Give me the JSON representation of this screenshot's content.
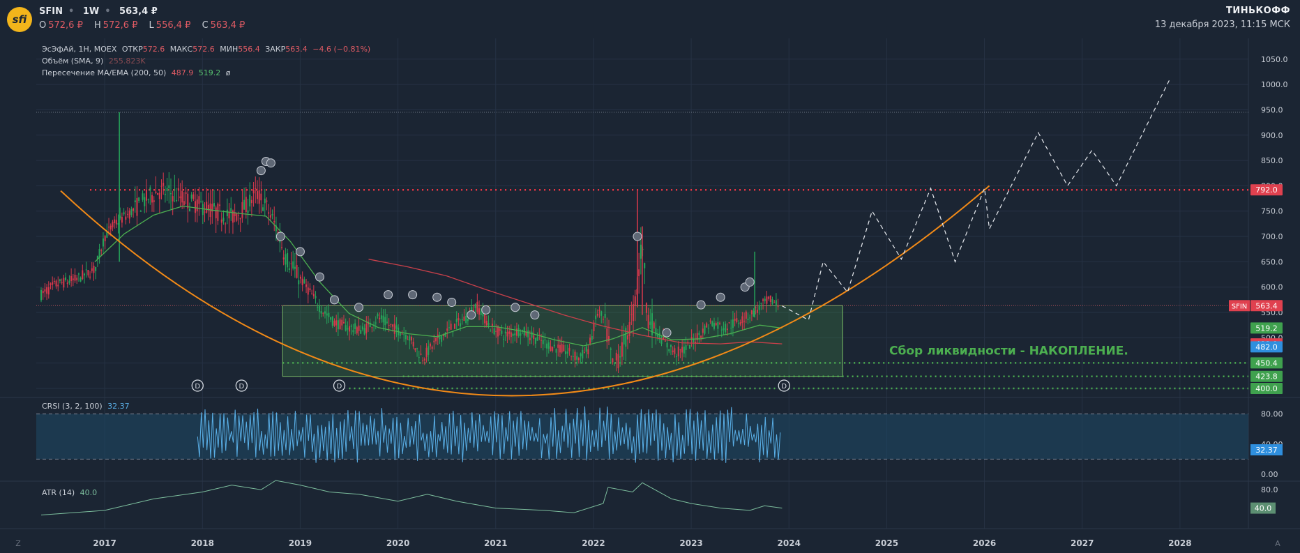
{
  "header": {
    "logo_text": "sfi",
    "symbol": "SFIN",
    "interval": "1W",
    "price": "563,4 ₽",
    "ohlc": [
      {
        "k": "O",
        "v": "572,6 ₽"
      },
      {
        "k": "H",
        "v": "572,6 ₽"
      },
      {
        "k": "L",
        "v": "556,4 ₽"
      },
      {
        "k": "C",
        "v": "563,4 ₽"
      }
    ],
    "brand": "ТИНЬКОФФ",
    "date": "13 декабря 2023, 11:15 МСК"
  },
  "legend": {
    "main_name": "ЭсЭфАй, 1Н, MOEX",
    "open_k": "ОТКР",
    "open_v": "572.6",
    "high_k": "МАКС",
    "high_v": "572.6",
    "low_k": "МИН",
    "low_v": "556.4",
    "close_k": "ЗАКР",
    "close_v": "563.4",
    "change": "−4.6 (−0.81%)",
    "volume_name": "Объём (SMA, 9)",
    "volume_v": "255.823K",
    "ma_name": "Пересечение MA/EMA (200, 50)",
    "ma_v1": "487.9",
    "ma_v2": "519.2",
    "ma_sym": "ø",
    "crsi_name": "CRSI (3, 2, 100)",
    "crsi_v": "32.37",
    "atr_name": "ATR (14)",
    "atr_v": "40.0"
  },
  "annotation": "Сбор ликвидности - НАКОПЛЕНИЕ.",
  "footer": {
    "left_mark": "Z",
    "right_mark": "A"
  },
  "colors": {
    "background": "#1b2533",
    "up": "#26a65b",
    "down": "#d9394c",
    "resistance": "#f23645",
    "support": "#4caf50",
    "arc": "#f28a17",
    "zone": "#4caf50",
    "ma_slow": "#c9404a",
    "ma_fast": "#4caf50",
    "crsi": "#5ab0e8",
    "atr": "#7dbf9e",
    "label_green": "#3fa14e",
    "label_red": "#e0414f",
    "label_blue": "#2f8fde"
  },
  "chart_data": {
    "type": "candlestick",
    "x_axis": {
      "ticks": [
        "2017",
        "2018",
        "2019",
        "2020",
        "2021",
        "2022",
        "2023",
        "2024",
        "2025",
        "2026",
        "2027",
        "2028"
      ],
      "range": [
        2016.3,
        2028.7
      ]
    },
    "y_axis": {
      "ticks": [
        "400.0",
        "450.0",
        "500.0",
        "550.0",
        "600.0",
        "650.0",
        "700.0",
        "750.0",
        "800.0",
        "850.0",
        "900.0",
        "950.0",
        "1000.0",
        "1050.0"
      ],
      "range": [
        393,
        1075
      ],
      "scale": "linear"
    },
    "price_series": [
      [
        2016.35,
        585
      ],
      [
        2016.5,
        605
      ],
      [
        2016.7,
        615
      ],
      [
        2016.9,
        635
      ],
      [
        2017.0,
        700
      ],
      [
        2017.1,
        725
      ],
      [
        2017.25,
        745
      ],
      [
        2017.4,
        770
      ],
      [
        2017.55,
        790
      ],
      [
        2017.7,
        785
      ],
      [
        2017.85,
        770
      ],
      [
        2018.0,
        760
      ],
      [
        2018.15,
        748
      ],
      [
        2018.3,
        738
      ],
      [
        2018.45,
        760
      ],
      [
        2018.55,
        785
      ],
      [
        2018.65,
        760
      ],
      [
        2018.75,
        720
      ],
      [
        2018.85,
        660
      ],
      [
        2018.95,
        630
      ],
      [
        2019.1,
        590
      ],
      [
        2019.2,
        560
      ],
      [
        2019.35,
        530
      ],
      [
        2019.5,
        520
      ],
      [
        2019.65,
        515
      ],
      [
        2019.8,
        540
      ],
      [
        2019.95,
        520
      ],
      [
        2020.1,
        505
      ],
      [
        2020.25,
        460
      ],
      [
        2020.4,
        495
      ],
      [
        2020.55,
        520
      ],
      [
        2020.7,
        540
      ],
      [
        2020.8,
        565
      ],
      [
        2020.95,
        520
      ],
      [
        2021.1,
        505
      ],
      [
        2021.25,
        515
      ],
      [
        2021.4,
        500
      ],
      [
        2021.55,
        485
      ],
      [
        2021.7,
        475
      ],
      [
        2021.85,
        460
      ],
      [
        2021.95,
        478
      ],
      [
        2022.05,
        555
      ],
      [
        2022.12,
        525
      ],
      [
        2022.2,
        440
      ],
      [
        2022.3,
        480
      ],
      [
        2022.4,
        540
      ],
      [
        2022.45,
        600
      ],
      [
        2022.5,
        700
      ],
      [
        2022.55,
        545
      ],
      [
        2022.65,
        510
      ],
      [
        2022.75,
        485
      ],
      [
        2022.85,
        470
      ],
      [
        2022.95,
        480
      ],
      [
        2023.05,
        500
      ],
      [
        2023.2,
        530
      ],
      [
        2023.35,
        520
      ],
      [
        2023.5,
        535
      ],
      [
        2023.6,
        545
      ],
      [
        2023.7,
        560
      ],
      [
        2023.8,
        575
      ],
      [
        2023.9,
        563.4
      ]
    ],
    "price_range": {
      "high": 792,
      "low": 400
    },
    "ma_200": [
      [
        2019.7,
        655
      ],
      [
        2020.1,
        640
      ],
      [
        2020.5,
        622
      ],
      [
        2020.9,
        595
      ],
      [
        2021.3,
        570
      ],
      [
        2021.7,
        545
      ],
      [
        2022.1,
        523
      ],
      [
        2022.5,
        505
      ],
      [
        2022.9,
        490
      ],
      [
        2023.3,
        488
      ],
      [
        2023.6,
        492
      ],
      [
        2023.93,
        488
      ]
    ],
    "ema_50": [
      [
        2016.9,
        650
      ],
      [
        2017.2,
        705
      ],
      [
        2017.5,
        742
      ],
      [
        2017.8,
        760
      ],
      [
        2018.1,
        752
      ],
      [
        2018.4,
        745
      ],
      [
        2018.65,
        740
      ],
      [
        2018.9,
        690
      ],
      [
        2019.2,
        610
      ],
      [
        2019.5,
        548
      ],
      [
        2019.8,
        520
      ],
      [
        2020.1,
        508
      ],
      [
        2020.4,
        502
      ],
      [
        2020.7,
        522
      ],
      [
        2021.0,
        522
      ],
      [
        2021.3,
        512
      ],
      [
        2021.6,
        496
      ],
      [
        2021.9,
        484
      ],
      [
        2022.2,
        498
      ],
      [
        2022.5,
        520
      ],
      [
        2022.8,
        496
      ],
      [
        2023.1,
        498
      ],
      [
        2023.4,
        508
      ],
      [
        2023.7,
        525
      ],
      [
        2023.93,
        519
      ]
    ],
    "horizontal_levels": [
      {
        "price": 792,
        "style": "resistance"
      },
      {
        "price": 450.4,
        "style": "support"
      },
      {
        "price": 423.8,
        "style": "support"
      },
      {
        "price": 400.0,
        "style": "support"
      }
    ],
    "accumulation_zone": {
      "x": [
        2018.82,
        2024.55
      ],
      "y": [
        423.8,
        563.4
      ]
    },
    "arc_curve": {
      "x": [
        2016.55,
        2026.05
      ],
      "top": 800,
      "bottom": 395
    },
    "projection": [
      [
        2023.93,
        563
      ],
      [
        2024.2,
        535
      ],
      [
        2024.35,
        650
      ],
      [
        2024.6,
        590
      ],
      [
        2024.85,
        750
      ],
      [
        2025.15,
        655
      ],
      [
        2025.45,
        795
      ],
      [
        2025.7,
        650
      ],
      [
        2026.0,
        795
      ],
      [
        2026.05,
        715
      ],
      [
        2026.55,
        905
      ],
      [
        2026.85,
        800
      ],
      [
        2027.1,
        870
      ],
      [
        2027.35,
        800
      ],
      [
        2027.9,
        1012
      ]
    ],
    "current_price": 563.4,
    "price_labels": [
      {
        "text": "792.0",
        "price": 792,
        "color": "red"
      },
      {
        "text": "563.4",
        "price": 563.4,
        "color": "red",
        "tag": "SFIN"
      },
      {
        "text": "519.2",
        "price": 519.2,
        "color": "green"
      },
      {
        "text": "488.0",
        "price": 488.0,
        "color": "red"
      },
      {
        "text": "482.0",
        "price": 482.0,
        "color": "blue"
      },
      {
        "text": "450.4",
        "price": 450.4,
        "color": "green"
      },
      {
        "text": "423.8",
        "price": 423.8,
        "color": "green"
      },
      {
        "text": "400.0",
        "price": 400.0,
        "color": "green"
      }
    ],
    "dividend_marks": [
      2017.95,
      2018.4,
      2019.4,
      2023.95
    ],
    "crsi": {
      "ticks": [
        "80.00",
        "40.00",
        "0.00"
      ],
      "upper": 80,
      "lower": 20,
      "last": 32.37
    },
    "atr": {
      "ticks": [
        "80.0"
      ],
      "last": 40.0,
      "series": [
        [
          2016.35,
          25
        ],
        [
          2017.0,
          35
        ],
        [
          2017.5,
          60
        ],
        [
          2018.0,
          75
        ],
        [
          2018.3,
          90
        ],
        [
          2018.6,
          80
        ],
        [
          2018.75,
          100
        ],
        [
          2019.0,
          90
        ],
        [
          2019.3,
          75
        ],
        [
          2019.6,
          70
        ],
        [
          2020.0,
          55
        ],
        [
          2020.3,
          70
        ],
        [
          2020.6,
          55
        ],
        [
          2021.0,
          40
        ],
        [
          2021.5,
          35
        ],
        [
          2021.8,
          30
        ],
        [
          2022.1,
          50
        ],
        [
          2022.15,
          85
        ],
        [
          2022.4,
          75
        ],
        [
          2022.5,
          95
        ],
        [
          2022.8,
          60
        ],
        [
          2023.0,
          50
        ],
        [
          2023.3,
          40
        ],
        [
          2023.6,
          35
        ],
        [
          2023.75,
          45
        ],
        [
          2023.93,
          40
        ]
      ]
    }
  }
}
